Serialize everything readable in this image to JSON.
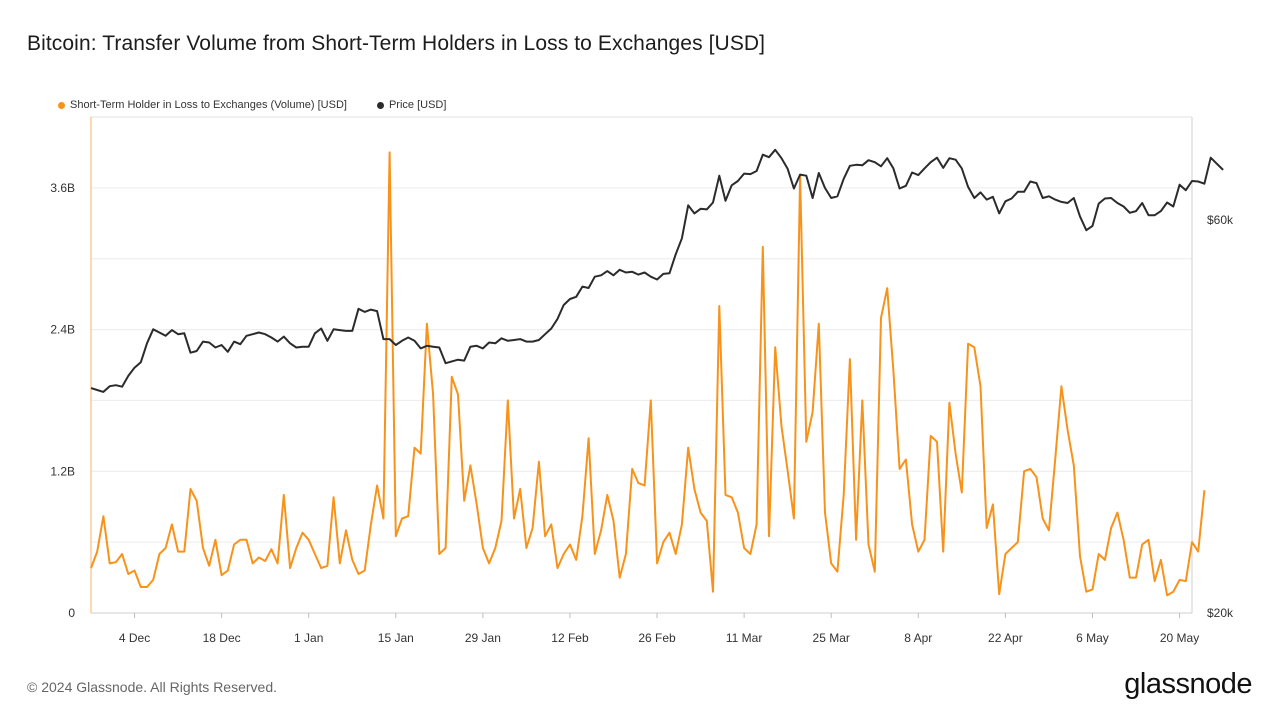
{
  "title": "Bitcoin: Transfer Volume from Short-Term Holders in Loss to Exchanges [USD]",
  "footer": {
    "copyright": "© 2024 Glassnode. All Rights Reserved.",
    "logo": "glassnode"
  },
  "colors": {
    "volume": "#f7931a",
    "price": "#2b2b2b",
    "grid": "#ececec"
  },
  "chart_data": {
    "type": "line",
    "legend": [
      {
        "name": "Short-Term Holder in Loss to Exchanges (Volume) [USD]",
        "color": "#f7931a"
      },
      {
        "name": "Price [USD]",
        "color": "#2b2b2b"
      }
    ],
    "legend_position": "top-left",
    "grid": true,
    "x_start": "2023-11-27",
    "x_end": "2024-05-22",
    "x_ticks": [
      "4 Dec",
      "18 Dec",
      "1 Jan",
      "15 Jan",
      "29 Jan",
      "12 Feb",
      "26 Feb",
      "11 Mar",
      "25 Mar",
      "8 Apr",
      "22 Apr",
      "6 May",
      "20 May"
    ],
    "x_tick_dates": [
      "2023-12-04",
      "2023-12-18",
      "2024-01-01",
      "2024-01-15",
      "2024-01-29",
      "2024-02-12",
      "2024-02-26",
      "2024-03-11",
      "2024-03-25",
      "2024-04-08",
      "2024-04-22",
      "2024-05-06",
      "2024-05-20"
    ],
    "y_left": {
      "ticks": [
        "0",
        "1.2B",
        "2.4B",
        "3.6B"
      ],
      "tick_values": [
        0,
        1.2,
        2.4,
        3.6
      ],
      "unit": "B USD",
      "range": [
        0,
        4.2
      ]
    },
    "y_right": {
      "ticks": [
        "$20k",
        "$60k"
      ],
      "tick_values": [
        20000,
        60000
      ],
      "scale": "log",
      "range": [
        20000,
        80000
      ]
    },
    "series": [
      {
        "name": "Short-Term Holder in Loss to Exchanges (Volume) [USD]",
        "axis": "left",
        "values": [
          0.38,
          0.52,
          0.82,
          0.42,
          0.43,
          0.5,
          0.33,
          0.36,
          0.22,
          0.22,
          0.28,
          0.5,
          0.55,
          0.75,
          0.52,
          0.52,
          1.05,
          0.95,
          0.55,
          0.4,
          0.62,
          0.32,
          0.36,
          0.58,
          0.62,
          0.62,
          0.42,
          0.47,
          0.44,
          0.54,
          0.42,
          1.0,
          0.38,
          0.55,
          0.68,
          0.62,
          0.5,
          0.38,
          0.4,
          0.98,
          0.42,
          0.7,
          0.45,
          0.33,
          0.36,
          0.75,
          1.08,
          0.8,
          3.9,
          0.65,
          0.8,
          0.82,
          1.4,
          1.35,
          2.45,
          1.85,
          0.5,
          0.55,
          2.0,
          1.85,
          0.95,
          1.25,
          0.92,
          0.55,
          0.42,
          0.55,
          0.78,
          1.8,
          0.8,
          1.05,
          0.55,
          0.72,
          1.28,
          0.65,
          0.75,
          0.38,
          0.5,
          0.58,
          0.45,
          0.82,
          1.48,
          0.5,
          0.7,
          1.0,
          0.78,
          0.3,
          0.5,
          1.22,
          1.1,
          1.08,
          1.8,
          0.42,
          0.6,
          0.68,
          0.5,
          0.75,
          1.4,
          1.05,
          0.85,
          0.78,
          0.18,
          2.6,
          1.0,
          0.98,
          0.85,
          0.55,
          0.5,
          0.75,
          3.1,
          0.65,
          2.25,
          1.58,
          1.2,
          0.8,
          3.7,
          1.45,
          1.7,
          2.45,
          0.85,
          0.42,
          0.35,
          1.0,
          2.15,
          0.62,
          1.8,
          0.58,
          0.35,
          2.5,
          2.75,
          2.05,
          1.22,
          1.3,
          0.75,
          0.52,
          0.62,
          1.5,
          1.45,
          0.52,
          1.78,
          1.35,
          1.02,
          2.28,
          2.25,
          1.92,
          0.72,
          0.92,
          0.16,
          0.5,
          0.55,
          0.6,
          1.2,
          1.22,
          1.15,
          0.8,
          0.7,
          1.3,
          1.92,
          1.55,
          1.25,
          0.48,
          0.18,
          0.2,
          0.5,
          0.45,
          0.72,
          0.85,
          0.62,
          0.3,
          0.3,
          0.58,
          0.62,
          0.27,
          0.45,
          0.15,
          0.18,
          0.28,
          0.27,
          0.6,
          0.52,
          1.04
        ]
      },
      {
        "name": "Price [USD]",
        "axis": "right",
        "values": [
          37500,
          37300,
          37100,
          37700,
          37800,
          37650,
          38800,
          39700,
          40300,
          42500,
          44200,
          43800,
          43400,
          44100,
          43600,
          43700,
          41400,
          41600,
          42700,
          42600,
          42000,
          42300,
          41500,
          42700,
          42400,
          43400,
          43600,
          43800,
          43600,
          43200,
          42700,
          43300,
          42500,
          42000,
          42100,
          42100,
          43700,
          44300,
          42800,
          44200,
          44100,
          44000,
          44000,
          46800,
          46400,
          46700,
          46500,
          43000,
          43000,
          42300,
          42800,
          43200,
          42800,
          41900,
          42200,
          42100,
          42000,
          40200,
          40400,
          40600,
          40500,
          42100,
          42200,
          41900,
          42600,
          42500,
          43100,
          42800,
          42900,
          43000,
          42700,
          42700,
          42900,
          43600,
          44300,
          45500,
          47300,
          48100,
          48400,
          49800,
          49600,
          51200,
          51400,
          52000,
          51400,
          52200,
          51800,
          51900,
          51500,
          51800,
          51200,
          50800,
          51600,
          51700,
          54500,
          57000,
          62500,
          61100,
          61900,
          61800,
          63000,
          67900,
          63300,
          66100,
          66900,
          68300,
          68200,
          68800,
          72000,
          71500,
          73000,
          71300,
          69200,
          65500,
          68100,
          67900,
          63800,
          68400,
          65600,
          63800,
          64100,
          67300,
          69800,
          70000,
          69900,
          70900,
          70500,
          69700,
          71300,
          69300,
          65500,
          66000,
          68500,
          68000,
          69300,
          70500,
          71400,
          69400,
          71300,
          71000,
          69300,
          65800,
          63800,
          64800,
          63500,
          64000,
          61100,
          63200,
          63700,
          64900,
          64900,
          66800,
          66500,
          63800,
          64100,
          63500,
          63100,
          62900,
          63800,
          60600,
          58300,
          59000,
          62800,
          63700,
          63800,
          62900,
          62300,
          61200,
          61500,
          62900,
          60800,
          60800,
          61500,
          63000,
          62300,
          66200,
          65200,
          66900,
          66800,
          66400,
          71400,
          70200,
          69000
        ]
      }
    ]
  }
}
